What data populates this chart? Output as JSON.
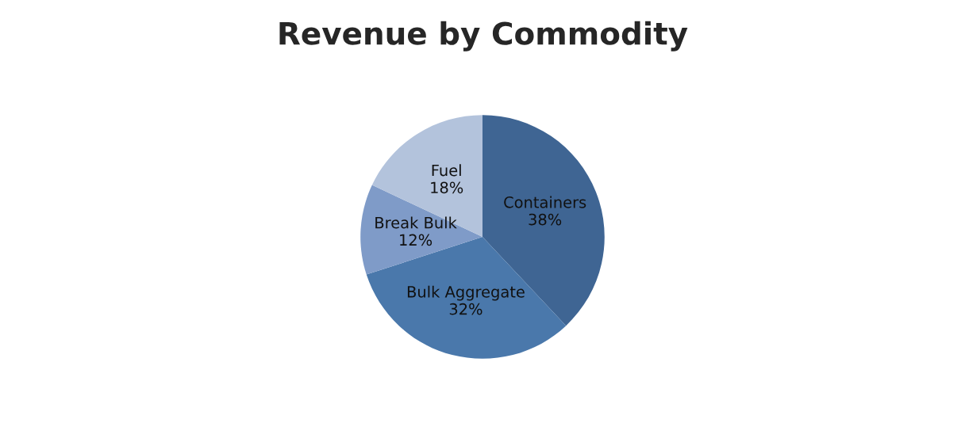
{
  "chart_data": {
    "type": "pie",
    "title": "Revenue by Commodity",
    "categories": [
      "Containers",
      "Bulk Aggregate",
      "Break Bulk",
      "Fuel"
    ],
    "values": [
      38,
      32,
      12,
      18
    ],
    "value_labels": [
      "38%",
      "32%",
      "12%",
      "18%"
    ],
    "colors": [
      "#3f6593",
      "#4a78ab",
      "#7f9bc8",
      "#b3c3dc"
    ],
    "legend": false
  }
}
